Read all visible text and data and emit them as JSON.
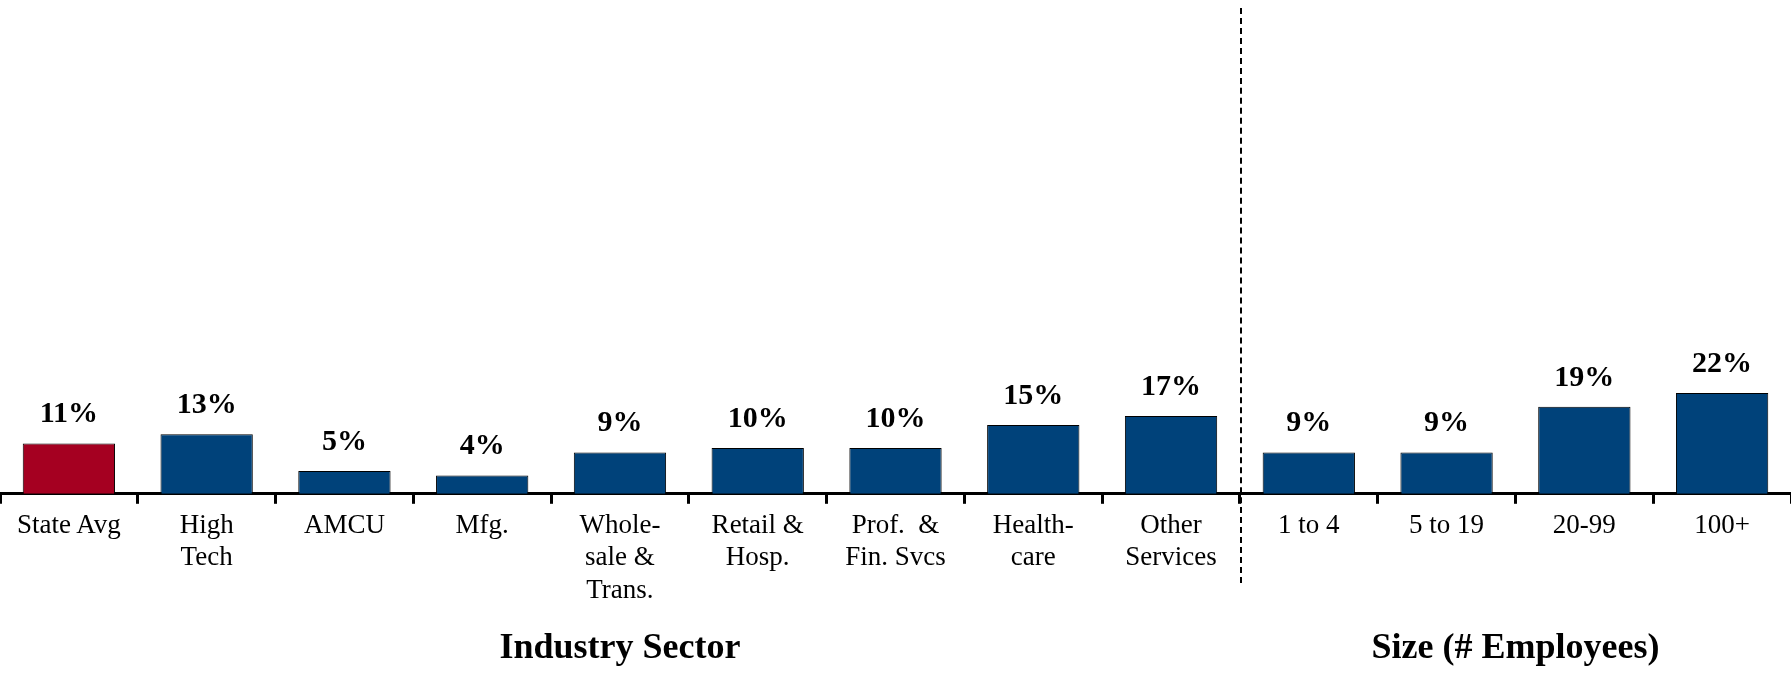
{
  "chart_data": {
    "type": "bar",
    "categories": [
      "State Avg",
      "High\nTech",
      "AMCU",
      "Mfg.",
      "Whole-\nsale &\nTrans.",
      "Retail &\nHosp.",
      "Prof.  &\nFin. Svcs",
      "Health-\ncare",
      "Other\nServices",
      "1 to 4",
      "5 to 19",
      "20-99",
      "100+"
    ],
    "values": [
      11,
      13,
      5,
      4,
      9,
      10,
      10,
      15,
      17,
      9,
      9,
      19,
      22
    ],
    "colors": [
      "#a50021",
      "#00427a",
      "#00427a",
      "#00427a",
      "#00427a",
      "#00427a",
      "#00427a",
      "#00427a",
      "#00427a",
      "#00427a",
      "#00427a",
      "#00427a",
      "#00427a"
    ],
    "value_labels": [
      "11%",
      "13%",
      "5%",
      "4%",
      "9%",
      "10%",
      "10%",
      "15%",
      "17%",
      "9%",
      "9%",
      "19%",
      "22%"
    ],
    "tick_labels": "x",
    "annotations": [
      "Industry Sector",
      "Size (# Employees)"
    ]
  }
}
